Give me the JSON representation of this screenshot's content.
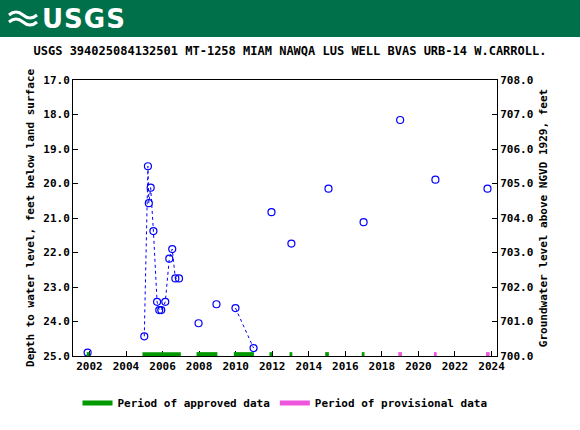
{
  "logo": "USGS",
  "chart_data": {
    "type": "scatter",
    "title": "USGS 394025084132501 MT-1258 MIAM NAWQA LUS WELL BVAS URB-14 W.CARROLL.",
    "x_label": "",
    "y_label": "Depth to water level, feet below land surface",
    "y2_label": "Groundwater level above NGVD 1929, feet",
    "xlim": [
      2001.1,
      2024.3
    ],
    "xticks": [
      2002,
      2004,
      2006,
      2008,
      2010,
      2012,
      2014,
      2016,
      2018,
      2020,
      2022,
      2024
    ],
    "ylim": [
      25,
      17
    ],
    "yticks": [
      {
        "value": 17,
        "label": "17.0"
      },
      {
        "value": 18,
        "label": "18.0"
      },
      {
        "value": 19,
        "label": "19.0"
      },
      {
        "value": 20,
        "label": "20.0"
      },
      {
        "value": 21,
        "label": "21.0"
      },
      {
        "value": 22,
        "label": "22.0"
      },
      {
        "value": 23,
        "label": "23.0"
      },
      {
        "value": 24,
        "label": "24.0"
      },
      {
        "value": 25,
        "label": "25.0"
      }
    ],
    "y2lim": [
      700,
      708
    ],
    "y2ticks": [
      {
        "value": 700,
        "label": "700.0"
      },
      {
        "value": 701,
        "label": "701.0"
      },
      {
        "value": 702,
        "label": "702.0"
      },
      {
        "value": 703,
        "label": "703.0"
      },
      {
        "value": 704,
        "label": "704.0"
      },
      {
        "value": 705,
        "label": "705.0"
      },
      {
        "value": 706,
        "label": "706.0"
      },
      {
        "value": 707,
        "label": "707.0"
      },
      {
        "value": 708,
        "label": "708.0"
      }
    ],
    "grid": false,
    "legend": "bottom",
    "series": [
      {
        "x": [
          2001.9
        ],
        "values": [
          24.9
        ],
        "color": "#0000ff",
        "marker": "circle-open",
        "line_style": "dotted"
      },
      {
        "x": [
          2005.0,
          2005.2,
          2005.25,
          2005.35,
          2005.5,
          2005.7,
          2005.82,
          2005.93,
          2006.15,
          2006.37,
          2006.53,
          2006.7,
          2006.9
        ],
        "values": [
          24.43,
          19.5,
          20.57,
          20.12,
          21.38,
          23.43,
          23.67,
          23.67,
          23.43,
          22.18,
          21.9,
          22.75,
          22.75
        ],
        "color": "#0000ff",
        "marker": "circle-open",
        "line_style": "dotted"
      },
      {
        "x": [
          2007.97
        ],
        "values": [
          24.05
        ],
        "color": "#0000ff",
        "marker": "circle-open",
        "line_style": "dotted"
      },
      {
        "x": [
          2008.95
        ],
        "values": [
          23.5
        ],
        "color": "#0000ff",
        "marker": "circle-open",
        "line_style": "dotted"
      },
      {
        "x": [
          2009.99,
          2010.98
        ],
        "values": [
          23.61,
          24.77
        ],
        "color": "#0000ff",
        "marker": "circle-open",
        "line_style": "dotted"
      },
      {
        "x": [
          2011.96
        ],
        "values": [
          20.83
        ],
        "color": "#0000ff",
        "marker": "circle-open",
        "line_style": "dotted"
      },
      {
        "x": [
          2013.05
        ],
        "values": [
          21.74
        ],
        "color": "#0000ff",
        "marker": "circle-open",
        "line_style": "dotted"
      },
      {
        "x": [
          2015.08
        ],
        "values": [
          20.15
        ],
        "color": "#0000ff",
        "marker": "circle-open",
        "line_style": "dotted"
      },
      {
        "x": [
          2017.0
        ],
        "values": [
          21.12
        ],
        "color": "#0000ff",
        "marker": "circle-open",
        "line_style": "dotted"
      },
      {
        "x": [
          2019.0
        ],
        "values": [
          18.16
        ],
        "color": "#0000ff",
        "marker": "circle-open",
        "line_style": "dotted"
      },
      {
        "x": [
          2020.93
        ],
        "values": [
          19.89
        ],
        "color": "#0000ff",
        "marker": "circle-open",
        "line_style": "dotted"
      },
      {
        "x": [
          2023.78
        ],
        "values": [
          20.15
        ],
        "color": "#0000ff",
        "marker": "circle-open",
        "line_style": "dotted"
      }
    ],
    "periods": [
      {
        "name": "Period of approved data",
        "color": "#009900",
        "ranges": [
          [
            2001.85,
            2002.0
          ],
          [
            2004.9,
            2007.0
          ],
          [
            2007.86,
            2009.0
          ],
          [
            2009.9,
            2011.0
          ],
          [
            2011.85,
            2012.0
          ],
          [
            2012.95,
            2013.1
          ],
          [
            2014.9,
            2015.1
          ],
          [
            2016.9,
            2017.05
          ]
        ]
      },
      {
        "name": "Period of provisional data",
        "color": "#ee55dd",
        "ranges": [
          [
            2018.9,
            2019.1
          ],
          [
            2020.85,
            2021.0
          ],
          [
            2023.7,
            2023.9
          ]
        ]
      }
    ]
  }
}
